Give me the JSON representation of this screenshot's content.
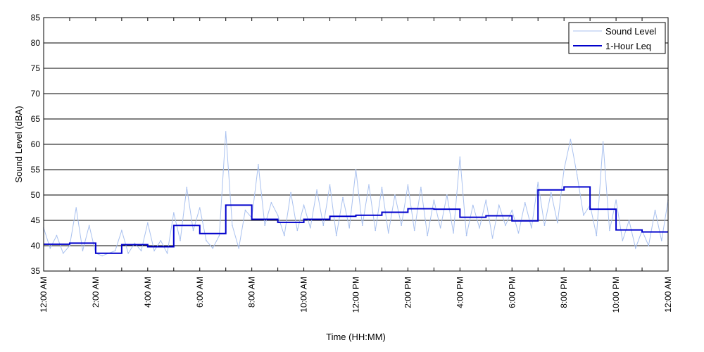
{
  "chart_data": {
    "type": "line",
    "xlabel": "Time (HH:MM)",
    "ylabel": "Sound Level (dBA)",
    "ylim": [
      35,
      85
    ],
    "y_ticks": [
      35,
      40,
      45,
      50,
      55,
      60,
      65,
      70,
      75,
      80,
      85
    ],
    "x_ticks": [
      "12:00 AM",
      "2:00 AM",
      "4:00 AM",
      "6:00 AM",
      "8:00 AM",
      "10:00 AM",
      "12:00 PM",
      "2:00 PM",
      "4:00 PM",
      "6:00 PM",
      "8:00 PM",
      "10:00 PM",
      "12:00 AM"
    ],
    "grid": "horizontal",
    "legend_position": "top-right",
    "series": [
      {
        "name": "Sound Level",
        "color": "#a9c1ef",
        "note_x": "hour of day, sampled every 15 min",
        "x": [
          0,
          0.25,
          0.5,
          0.75,
          1,
          1.25,
          1.5,
          1.75,
          2,
          2.25,
          2.5,
          2.75,
          3,
          3.25,
          3.5,
          3.75,
          4,
          4.25,
          4.5,
          4.75,
          5,
          5.25,
          5.5,
          5.75,
          6,
          6.25,
          6.5,
          6.75,
          7,
          7.25,
          7.5,
          7.75,
          8,
          8.25,
          8.5,
          8.75,
          9,
          9.25,
          9.5,
          9.75,
          10,
          10.25,
          10.5,
          10.75,
          11,
          11.25,
          11.5,
          11.75,
          12,
          12.25,
          12.5,
          12.75,
          13,
          13.25,
          13.5,
          13.75,
          14,
          14.25,
          14.5,
          14.75,
          15,
          15.25,
          15.5,
          15.75,
          16,
          16.25,
          16.5,
          16.75,
          17,
          17.25,
          17.5,
          17.75,
          18,
          18.25,
          18.5,
          18.75,
          19,
          19.25,
          19.5,
          19.75,
          20,
          20.25,
          20.5,
          20.75,
          21,
          21.25,
          21.5,
          21.75,
          22,
          22.25,
          22.5,
          22.75,
          23,
          23.25,
          23.5,
          23.75,
          24
        ],
        "y": [
          43.5,
          39.5,
          42,
          38.5,
          40,
          47.5,
          39,
          44,
          38.5,
          38,
          38.5,
          39,
          43,
          38.5,
          40.5,
          39,
          44.5,
          39,
          41,
          38.5,
          46.5,
          41,
          51.5,
          43,
          47.5,
          41,
          39.5,
          42,
          62.5,
          44,
          39.5,
          47,
          45.5,
          56,
          44,
          48.5,
          46,
          42,
          50.5,
          43,
          48,
          43.5,
          51,
          44,
          52,
          42,
          49.5,
          43.5,
          55,
          44,
          52,
          43,
          51.5,
          42.5,
          50,
          44,
          52,
          43,
          51.5,
          42,
          49,
          43.5,
          50,
          42.5,
          57.5,
          42,
          48,
          43.5,
          49,
          41.5,
          48,
          44,
          47,
          42.5,
          48.5,
          43.5,
          52.5,
          44,
          50.5,
          44.5,
          55,
          61,
          54,
          46,
          48,
          42,
          60.5,
          43,
          49,
          41,
          45,
          39.5,
          43,
          40,
          47,
          41,
          49
        ]
      },
      {
        "name": "1-Hour Leq",
        "color": "#0000cc",
        "note_x": "hour start of each 1-hour block",
        "x": [
          0,
          1,
          2,
          3,
          4,
          5,
          6,
          7,
          8,
          9,
          10,
          11,
          12,
          13,
          14,
          15,
          16,
          17,
          18,
          19,
          20,
          21,
          22,
          23,
          24
        ],
        "y": [
          40.3,
          40.5,
          38.5,
          40.2,
          39.8,
          44.0,
          42.4,
          48.0,
          45.2,
          44.6,
          45.2,
          45.8,
          46.0,
          46.6,
          47.3,
          47.2,
          45.6,
          45.9,
          44.9,
          51.0,
          51.6,
          47.2,
          43.1,
          42.7,
          42.7
        ]
      }
    ]
  }
}
